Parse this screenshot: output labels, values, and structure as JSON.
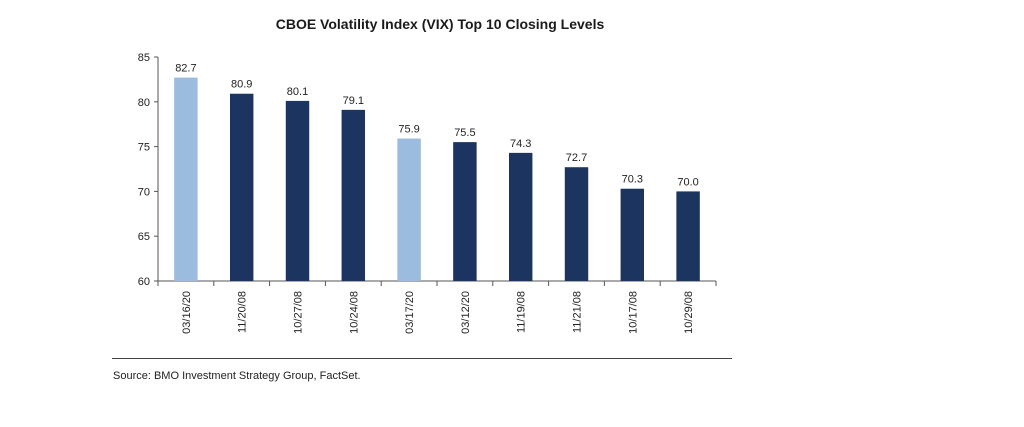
{
  "chart_data": {
    "type": "bar",
    "title": "CBOE Volatility Index (VIX) Top 10 Closing Levels",
    "xlabel": "",
    "ylabel": "",
    "categories": [
      "03/16/20",
      "11/20/08",
      "10/27/08",
      "10/24/08",
      "03/17/20",
      "03/12/20",
      "11/19/08",
      "11/21/08",
      "10/17/08",
      "10/29/08"
    ],
    "values": [
      82.7,
      80.9,
      80.1,
      79.1,
      75.9,
      75.5,
      74.3,
      72.7,
      70.3,
      70.0
    ],
    "data_labels": [
      "82.7",
      "80.9",
      "80.1",
      "79.1",
      "75.9",
      "75.5",
      "74.3",
      "72.7",
      "70.3",
      "70.0"
    ],
    "bar_colors": [
      "#9bbbdf",
      "#1b3560",
      "#1b3560",
      "#1b3560",
      "#9bbbdf",
      "#1b3560",
      "#1b3560",
      "#1b3560",
      "#1b3560",
      "#1b3560"
    ],
    "ylim": [
      60,
      85
    ],
    "yticks": [
      60,
      65,
      70,
      75,
      80,
      85
    ],
    "grid": false,
    "legend": "none"
  },
  "source": "Source: BMO Investment Strategy Group, FactSet."
}
